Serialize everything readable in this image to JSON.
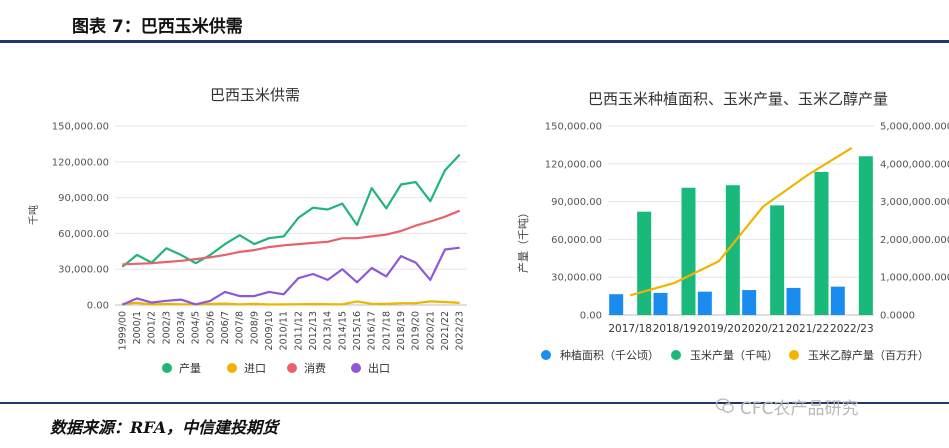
{
  "header": {
    "title": "图表 7：巴西玉米供需"
  },
  "footer": {
    "source": "数据来源：RFA，中信建投期货",
    "watermark": "CFC农产品研究"
  },
  "colors": {
    "green": "#21b57a",
    "yellow": "#f0b400",
    "red": "#e7636b",
    "purple": "#8c5ad6",
    "blue": "#1a8cf0",
    "bar_green": "#19b97c",
    "rule": "#1f3a68"
  },
  "chart_data": [
    {
      "type": "line",
      "title": "巴西玉米供需",
      "ylabel": "千吨",
      "ylim": [
        0,
        150000
      ],
      "yticks": [
        "0.00",
        "30,000.00",
        "60,000.00",
        "90,000.00",
        "120,000.00",
        "150,000.00"
      ],
      "categories": [
        "1999/00",
        "2000/1",
        "2001/2",
        "2002/3",
        "2003/4",
        "2004/5",
        "2005/6",
        "2006/7",
        "2007/8",
        "2008/9",
        "2009/10",
        "2010/11",
        "2011/12",
        "2012/13",
        "2013/14",
        "2014/15",
        "2015/16",
        "2016/17",
        "2017/18",
        "2018/19",
        "2019/20",
        "2020/21",
        "2021/22",
        "2022/23"
      ],
      "legend_position": "bottom",
      "series": [
        {
          "name": "产量",
          "color": "#21b57a",
          "values": [
            32000,
            42000,
            35500,
            47500,
            42000,
            35000,
            42000,
            51000,
            58500,
            51000,
            56000,
            57500,
            73000,
            81500,
            80000,
            85000,
            67000,
            98000,
            81000,
            101000,
            103000,
            87000,
            113000,
            126000
          ]
        },
        {
          "name": "进口",
          "color": "#f0b400",
          "values": [
            1000,
            1800,
            400,
            800,
            600,
            500,
            1000,
            1200,
            600,
            900,
            400,
            500,
            700,
            800,
            700,
            600,
            3000,
            1000,
            900,
            1500,
            1500,
            3000,
            2500,
            1800
          ]
        },
        {
          "name": "消费",
          "color": "#e7636b",
          "values": [
            34000,
            34500,
            35000,
            36000,
            37000,
            38500,
            40000,
            42000,
            44500,
            46000,
            48500,
            50000,
            51000,
            52000,
            53000,
            56000,
            56000,
            57500,
            59000,
            62000,
            66500,
            70000,
            74000,
            79000
          ]
        },
        {
          "name": "出口",
          "color": "#8c5ad6",
          "values": [
            200,
            5500,
            2000,
            3500,
            4500,
            500,
            3500,
            11000,
            7500,
            7500,
            11000,
            9000,
            22500,
            26000,
            21000,
            30000,
            19000,
            31000,
            24000,
            41000,
            35500,
            21000,
            46500,
            48000
          ]
        }
      ]
    },
    {
      "type": "bar",
      "title": "巴西玉米种植面积、玉米产量、玉米乙醇产量",
      "ylabel": "产量（千吨）",
      "ylim": [
        0,
        150000
      ],
      "yticks": [
        "0.00",
        "30,000.00",
        "60,000.00",
        "90,000.00",
        "120,000.00",
        "150,000.00"
      ],
      "y2lim": [
        0,
        5000000
      ],
      "y2ticks": [
        "0.0000",
        "1,000,000.0000",
        "2,000,000.0000",
        "3,000,000.0000",
        "4,000,000.0000",
        "5,000,000.0000"
      ],
      "categories": [
        "2017/18",
        "2018/19",
        "2019/20",
        "2020/21",
        "2021/22",
        "2022/23"
      ],
      "legend_position": "bottom",
      "series": [
        {
          "name": "种植面积（千公顷）",
          "color": "#1a8cf0",
          "axis": "left",
          "values": [
            16500,
            17500,
            18500,
            19800,
            21500,
            22500
          ]
        },
        {
          "name": "玉米产量（千吨）",
          "color": "#19b97c",
          "axis": "left",
          "values": [
            82000,
            101000,
            103000,
            87000,
            113500,
            126000
          ]
        },
        {
          "name": "玉米乙醇产量（百万升）",
          "color": "#f0b400",
          "axis": "right",
          "type": "line",
          "values": [
            520000,
            850000,
            1420000,
            2870000,
            3700000,
            4420000
          ]
        }
      ]
    }
  ]
}
